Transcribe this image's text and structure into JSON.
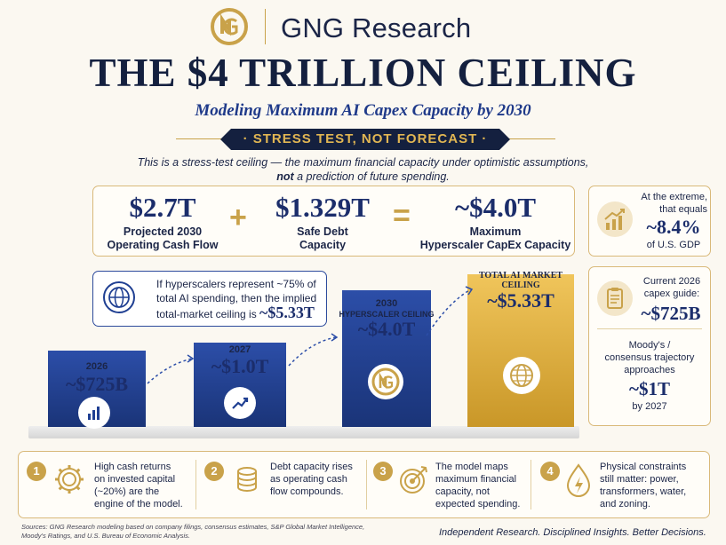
{
  "header": {
    "brand": "GNG Research",
    "title": "THE $4 TRILLION CEILING",
    "subtitle": "Modeling Maximum AI Capex Capacity by 2030",
    "banner": "STRESS TEST, NOT FORECAST",
    "intro_line1": "This is a stress-test ceiling — the maximum financial capacity under optimistic assumptions,",
    "intro_bold": "not",
    "intro_line2_rest": " a prediction of future spending."
  },
  "equation": {
    "term1_value": "$2.7T",
    "term1_label_1": "Projected 2030",
    "term1_label_2": "Operating Cash Flow",
    "plus": "+",
    "term2_value": "$1.329T",
    "term2_label_1": "Safe Debt",
    "term2_label_2": "Capacity",
    "equals": "=",
    "result_value": "~$4.0T",
    "result_label_1": "Maximum",
    "result_label_2": "Hyperscaler CapEx Capacity"
  },
  "gdp_card": {
    "line1": "At the extreme,",
    "line2": "that equals",
    "value": "~8.4%",
    "line3": "of U.S. GDP"
  },
  "capex_card": {
    "line1": "Current 2026",
    "line2": "capex guide:",
    "value": "~$725B",
    "line3": "Moody's /",
    "line4": "consensus trajectory",
    "line5": "approaches",
    "value2": "~$1T",
    "line6": "by 2027"
  },
  "callout": {
    "line1": "If hyperscalers represent ~75% of",
    "line2": "total AI spending, then the implied",
    "line3": "total-market ceiling is ",
    "value": "~$5.33T"
  },
  "chart_data": {
    "type": "bar",
    "categories": [
      "2026",
      "2027",
      "2030",
      "TOTAL AI MARKET CEILING"
    ],
    "values": [
      725,
      1000,
      4000,
      5330
    ],
    "unit": "$B",
    "value_labels": [
      "~$725B",
      "~$1.0T",
      "~$4.0T",
      "~$5.33T"
    ],
    "sub_labels": [
      "",
      "",
      "HYPERSCALER CEILING",
      ""
    ],
    "colors": [
      "#1f3f92",
      "#1f3f92",
      "#1f3f92",
      "#d8a83a"
    ],
    "title": "",
    "xlabel": "",
    "ylabel": ""
  },
  "bars": {
    "b1_year": "2026",
    "b1_value": "~$725B",
    "b2_year": "2027",
    "b2_value": "~$1.0T",
    "b3_year": "2030",
    "b3_sub": "HYPERSCALER CEILING",
    "b3_value": "~$4.0T",
    "b4_title1": "TOTAL AI MARKET",
    "b4_title2": "CEILING",
    "b4_value": "~$5.33T"
  },
  "points": [
    {
      "num": "1",
      "icon": "gear-icon",
      "line1": "High cash returns",
      "line2": "on invested capital",
      "line3": "(~20%) are the",
      "line4": "engine of the model."
    },
    {
      "num": "2",
      "icon": "coins-icon",
      "line1": "Debt capacity rises",
      "line2": "as operating cash",
      "line3": "flow compounds.",
      "line4": ""
    },
    {
      "num": "3",
      "icon": "target-icon",
      "line1": "The model maps",
      "line2": "maximum financial",
      "line3": "capacity, not",
      "line4": "expected spending."
    },
    {
      "num": "4",
      "icon": "drop-bolt-icon",
      "line1": "Physical constraints",
      "line2": "still matter: power,",
      "line3": "transformers, water,",
      "line4": "and zoning."
    }
  ],
  "footer": {
    "sources_1": "Sources: GNG Research modeling based on company filings, consensus estimates, S&P Global Market Intelligence,",
    "sources_2": "Moody's Ratings, and U.S. Bureau of Economic Analysis.",
    "tagline": "Independent Research. Disciplined Insights. Better Decisions."
  },
  "colors": {
    "navy": "#14203f",
    "blue": "#1f3f92",
    "gold": "#c9a24a",
    "background": "#fbf8f1"
  }
}
